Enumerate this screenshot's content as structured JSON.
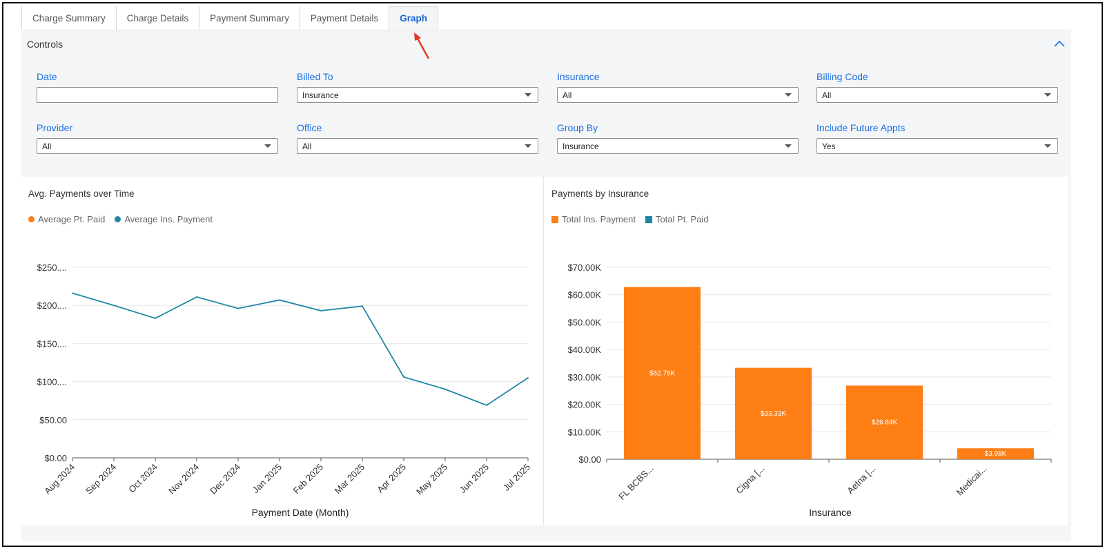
{
  "tabs": [
    {
      "label": "Charge Summary",
      "active": false
    },
    {
      "label": "Charge Details",
      "active": false
    },
    {
      "label": "Payment Summary",
      "active": false
    },
    {
      "label": "Payment Details",
      "active": false
    },
    {
      "label": "Graph",
      "active": true
    }
  ],
  "controls": {
    "title": "Controls",
    "fields": [
      {
        "label": "Date",
        "value": "",
        "dropdown": false
      },
      {
        "label": "Billed To",
        "value": "Insurance",
        "dropdown": true
      },
      {
        "label": "Insurance",
        "value": "All",
        "dropdown": true
      },
      {
        "label": "Billing Code",
        "value": "All",
        "dropdown": true
      },
      {
        "label": "Provider",
        "value": "All",
        "dropdown": true
      },
      {
        "label": "Office",
        "value": "All",
        "dropdown": true
      },
      {
        "label": "Group By",
        "value": "Insurance",
        "dropdown": true
      },
      {
        "label": "Include Future Appts",
        "value": "Yes",
        "dropdown": true
      }
    ]
  },
  "colors": {
    "accent": "#1a6fe0",
    "orange": "#fd7e14",
    "teal": "#1f86a8"
  },
  "chart_data": [
    {
      "type": "line",
      "title": "Avg. Payments over Time",
      "xlabel": "Payment Date (Month)",
      "ylabel": "",
      "ylim": [
        0,
        250
      ],
      "y_ticks": [
        0,
        50,
        100,
        150,
        200,
        250
      ],
      "y_tick_labels": [
        "$0.00",
        "$50.00",
        "$100....",
        "$150....",
        "$200....",
        "$250...."
      ],
      "categories": [
        "Aug 2024",
        "Sep 2024",
        "Oct 2024",
        "Nov 2024",
        "Dec 2024",
        "Jan 2025",
        "Feb 2025",
        "Mar 2025",
        "Apr 2025",
        "May 2025",
        "Jun 2025",
        "Jul 2025"
      ],
      "legend": [
        {
          "name": "Average Pt. Paid",
          "color": "#fd7e14"
        },
        {
          "name": "Average Ins. Payment",
          "color": "#1f86a8"
        }
      ],
      "series": [
        {
          "name": "Average Ins. Payment",
          "color": "#1f86a8",
          "values": [
            216,
            200,
            183,
            211,
            196,
            207,
            193,
            199,
            106,
            90,
            69,
            105
          ]
        }
      ]
    },
    {
      "type": "bar",
      "title": "Payments by Insurance",
      "xlabel": "Insurance",
      "ylabel": "",
      "ylim": [
        0,
        70000
      ],
      "y_ticks": [
        0,
        10000,
        20000,
        30000,
        40000,
        50000,
        60000,
        70000
      ],
      "y_tick_labels": [
        "$0.00",
        "$10.00K",
        "$20.00K",
        "$30.00K",
        "$40.00K",
        "$50.00K",
        "$60.00K",
        "$70.00K"
      ],
      "categories": [
        "FL BCBS...",
        "Cigna [...",
        "Aetna [...",
        "Medicai..."
      ],
      "legend": [
        {
          "name": "Total Ins. Payment",
          "color": "#fd7e14"
        },
        {
          "name": "Total Pt. Paid",
          "color": "#1f86a8"
        }
      ],
      "series": [
        {
          "name": "Total Ins. Payment",
          "color": "#fd7e14",
          "values": [
            62760,
            33330,
            26840,
            3980
          ],
          "labels": [
            "$62.76K",
            "$33.33K",
            "$26.84K",
            "$3.98K"
          ]
        }
      ]
    }
  ]
}
